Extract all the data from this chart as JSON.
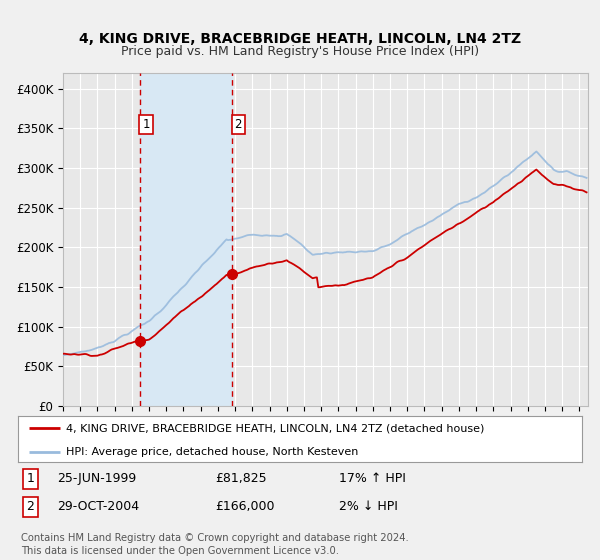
{
  "title": "4, KING DRIVE, BRACEBRIDGE HEATH, LINCOLN, LN4 2TZ",
  "subtitle": "Price paid vs. HM Land Registry's House Price Index (HPI)",
  "ylim": [
    0,
    420000
  ],
  "yticks": [
    0,
    50000,
    100000,
    150000,
    200000,
    250000,
    300000,
    350000,
    400000
  ],
  "ytick_labels": [
    "£0",
    "£50K",
    "£100K",
    "£150K",
    "£200K",
    "£250K",
    "£300K",
    "£350K",
    "£400K"
  ],
  "bg_color": "#f0f0f0",
  "plot_bg_color": "#e8e8e8",
  "grid_color": "#ffffff",
  "hpi_line_color": "#99bbdd",
  "price_line_color": "#cc0000",
  "sale1_x": 1999.46,
  "sale1_price": 81825,
  "sale2_x": 2004.82,
  "sale2_price": 166000,
  "shade_color": "#d8e8f4",
  "legend_line1": "4, KING DRIVE, BRACEBRIDGE HEATH, LINCOLN, LN4 2TZ (detached house)",
  "legend_line2": "HPI: Average price, detached house, North Kesteven",
  "sale1_date_str": "25-JUN-1999",
  "sale1_price_str": "£81,825",
  "sale1_hpi_str": "17% ↑ HPI",
  "sale2_date_str": "29-OCT-2004",
  "sale2_price_str": "£166,000",
  "sale2_hpi_str": "2% ↓ HPI",
  "footer": "Contains HM Land Registry data © Crown copyright and database right 2024.\nThis data is licensed under the Open Government Licence v3.0."
}
